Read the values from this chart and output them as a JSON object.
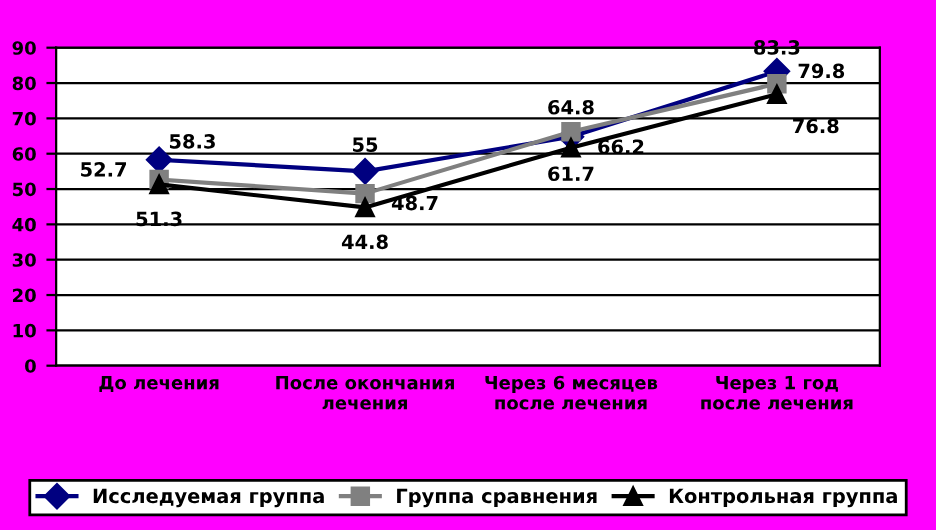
{
  "chart_data": {
    "type": "line",
    "categories": [
      "До лечения",
      "После окончания\nлечения",
      "Через 6 месяцев\nпосле лечения",
      "Через 1 год\nпосле лечения"
    ],
    "series": [
      {
        "name": "Исследуемая группа",
        "color": "#000080",
        "marker": "diamond",
        "values": [
          58.3,
          55,
          64.8,
          83.3
        ]
      },
      {
        "name": "Группа сравнения",
        "color": "#808080",
        "marker": "square",
        "values": [
          52.7,
          48.7,
          66.2,
          79.8
        ]
      },
      {
        "name": "Контрольная группа",
        "color": "#000000",
        "marker": "triangle",
        "values": [
          51.3,
          44.8,
          61.7,
          76.8
        ]
      }
    ],
    "ylim": [
      0,
      90
    ],
    "yticks": [
      0,
      10,
      20,
      30,
      40,
      50,
      60,
      70,
      80,
      90
    ],
    "grid": "y",
    "legend": "bottom",
    "data_labels": true
  }
}
